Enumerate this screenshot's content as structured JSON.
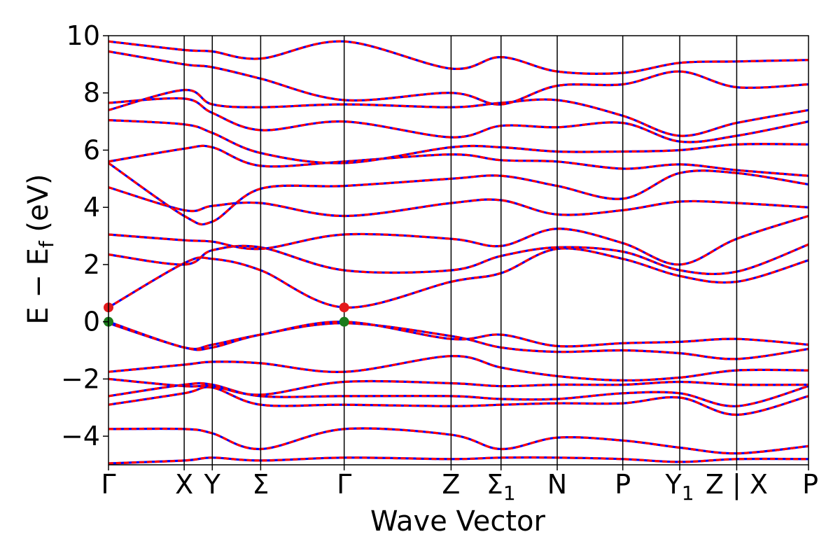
{
  "chart_data": {
    "type": "line",
    "title": "",
    "xlabel": "Wave Vector",
    "ylabel": "E − E_f (eV)",
    "ylabel_parts": {
      "main": "E − E",
      "sub": "f",
      "tail": " (eV)"
    },
    "ylim": [
      -5,
      10
    ],
    "yticks": [
      -4,
      -2,
      0,
      2,
      4,
      6,
      8,
      10
    ],
    "ytick_labels": [
      "−4",
      "−2",
      "0",
      "2",
      "4",
      "6",
      "8",
      "10"
    ],
    "xlim": [
      0,
      8.97
    ],
    "high_symmetry_points": [
      {
        "label": "Γ",
        "x": 0.0
      },
      {
        "label": "X",
        "x": 0.97
      },
      {
        "label": "Y",
        "x": 1.33
      },
      {
        "label": "Σ",
        "label_sub": "",
        "x": 1.95
      },
      {
        "label": "Γ",
        "x": 3.02
      },
      {
        "label": "Z",
        "x": 4.39
      },
      {
        "label": "Σ",
        "label_sub": "1",
        "x": 5.03
      },
      {
        "label": "N",
        "x": 5.75
      },
      {
        "label": "P",
        "x": 6.59
      },
      {
        "label": "Y",
        "label_sub": "1",
        "x": 7.32
      },
      {
        "label": "Z | X",
        "x": 8.05
      },
      {
        "label": "P",
        "x": 8.97
      }
    ],
    "band_style": {
      "color_a": "#ff0000",
      "color_b": "#0000ff"
    },
    "series": [
      {
        "values": [
          -4.95,
          -4.85,
          -4.75,
          -4.85,
          -4.75,
          -4.8,
          -4.75,
          -4.75,
          -4.8,
          -4.9,
          -4.8,
          -4.8
        ]
      },
      {
        "values": [
          -3.75,
          -3.75,
          -3.9,
          -4.45,
          -3.75,
          -3.95,
          -4.45,
          -4.05,
          -4.15,
          -4.4,
          -4.6,
          -4.35
        ]
      },
      {
        "values": [
          -2.9,
          -2.5,
          -2.3,
          -2.9,
          -2.9,
          -2.95,
          -2.9,
          -2.85,
          -2.85,
          -2.65,
          -3.25,
          -2.6
        ]
      },
      {
        "values": [
          -2.6,
          -2.2,
          -2.2,
          -2.6,
          -2.6,
          -2.6,
          -2.7,
          -2.7,
          -2.5,
          -2.5,
          -2.95,
          -2.25
        ]
      },
      {
        "values": [
          -2.0,
          -2.25,
          -2.25,
          -2.55,
          -2.1,
          -2.15,
          -2.25,
          -2.2,
          -2.2,
          -2.1,
          -2.2,
          -2.2
        ]
      },
      {
        "values": [
          -1.75,
          -1.5,
          -1.4,
          -1.45,
          -1.75,
          -1.2,
          -1.6,
          -1.9,
          -2.05,
          -1.95,
          -1.7,
          -1.7
        ]
      },
      {
        "values": [
          -0.05,
          -0.9,
          -0.9,
          -0.45,
          -0.05,
          -0.5,
          -0.9,
          -1.05,
          -1.0,
          -1.1,
          -1.3,
          -0.95
        ]
      },
      {
        "values": [
          0.0,
          -0.9,
          -0.8,
          -0.45,
          0.0,
          -0.6,
          -0.45,
          -0.85,
          -0.75,
          -0.7,
          -0.6,
          -0.8
        ]
      },
      {
        "values": [
          0.5,
          2.05,
          2.2,
          1.8,
          0.5,
          1.4,
          1.7,
          2.55,
          2.2,
          1.6,
          1.4,
          2.15
        ]
      },
      {
        "values": [
          2.35,
          2.0,
          2.5,
          2.6,
          1.8,
          1.8,
          2.3,
          2.6,
          2.45,
          1.8,
          1.75,
          2.7
        ]
      },
      {
        "values": [
          3.05,
          2.85,
          2.8,
          2.55,
          3.05,
          2.9,
          2.65,
          3.25,
          2.75,
          2.0,
          2.9,
          3.7
        ]
      },
      {
        "values": [
          4.7,
          3.9,
          4.05,
          4.15,
          3.7,
          4.15,
          4.25,
          3.75,
          3.9,
          4.2,
          4.15,
          4.0
        ]
      },
      {
        "values": [
          5.55,
          3.7,
          3.5,
          4.65,
          4.75,
          5.0,
          5.1,
          4.75,
          4.3,
          5.2,
          5.2,
          4.8
        ]
      },
      {
        "values": [
          5.6,
          6.05,
          6.1,
          5.45,
          5.6,
          5.85,
          5.65,
          5.6,
          5.35,
          5.5,
          5.3,
          5.1
        ]
      },
      {
        "values": [
          7.05,
          6.9,
          6.6,
          5.9,
          5.55,
          6.1,
          6.1,
          5.95,
          5.95,
          6.0,
          6.2,
          6.2
        ]
      },
      {
        "values": [
          7.65,
          7.8,
          7.3,
          6.7,
          7.0,
          6.45,
          6.85,
          6.8,
          6.95,
          6.3,
          6.5,
          7.0
        ]
      },
      {
        "values": [
          7.4,
          8.1,
          7.6,
          7.5,
          7.6,
          7.5,
          7.65,
          7.75,
          7.2,
          6.5,
          6.95,
          7.4
        ]
      },
      {
        "values": [
          9.45,
          9.0,
          8.9,
          8.5,
          7.75,
          8.0,
          7.6,
          8.25,
          8.3,
          8.75,
          8.2,
          8.3
        ]
      },
      {
        "values": [
          9.8,
          9.5,
          9.45,
          9.2,
          9.8,
          8.85,
          9.25,
          8.75,
          8.7,
          9.05,
          9.1,
          9.15
        ]
      }
    ],
    "highlight_points": [
      {
        "x": 0.0,
        "y": 0.5,
        "color": "#e31a1c"
      },
      {
        "x": 0.0,
        "y": 0.0,
        "color": "#1a7a1a"
      },
      {
        "x": 3.02,
        "y": 0.5,
        "color": "#e31a1c"
      },
      {
        "x": 3.02,
        "y": 0.0,
        "color": "#1a7a1a"
      }
    ]
  }
}
